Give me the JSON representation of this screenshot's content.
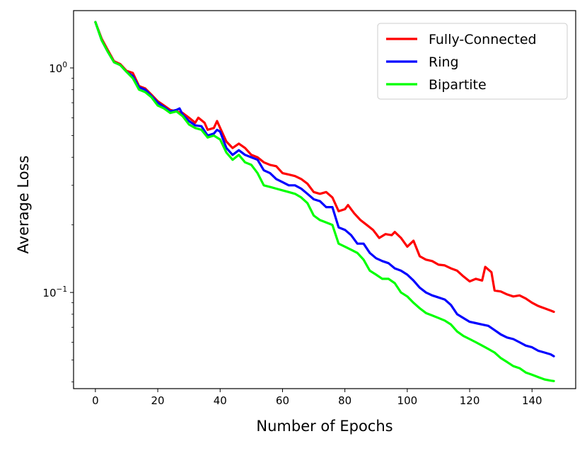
{
  "chart_data": {
    "type": "line",
    "title": "",
    "xlabel": "Number of Epochs",
    "ylabel": "Average Loss",
    "yscale": "log",
    "xlim": [
      -7,
      154
    ],
    "ylim": [
      0.0373,
      1.8
    ],
    "x_ticks": [
      0,
      20,
      40,
      60,
      80,
      100,
      120,
      140
    ],
    "y_ticks": [
      {
        "value": 1.0,
        "label_base": "10",
        "label_exp": "0"
      },
      {
        "value": 0.1,
        "label_base": "10",
        "label_exp": "−1"
      }
    ],
    "grid": false,
    "legend_placement": "top-right",
    "series": [
      {
        "name": "Fully-Connected",
        "color": "#ff0000",
        "points": [
          [
            0,
            1.6
          ],
          [
            2,
            1.35
          ],
          [
            4,
            1.2
          ],
          [
            6,
            1.07
          ],
          [
            8,
            1.04
          ],
          [
            10,
            0.97
          ],
          [
            12,
            0.95
          ],
          [
            14,
            0.83
          ],
          [
            16,
            0.81
          ],
          [
            18,
            0.76
          ],
          [
            20,
            0.71
          ],
          [
            22,
            0.68
          ],
          [
            24,
            0.65
          ],
          [
            26,
            0.64
          ],
          [
            28,
            0.63
          ],
          [
            30,
            0.6
          ],
          [
            32,
            0.57
          ],
          [
            33,
            0.6
          ],
          [
            35,
            0.57
          ],
          [
            36,
            0.53
          ],
          [
            38,
            0.54
          ],
          [
            39,
            0.58
          ],
          [
            40,
            0.54
          ],
          [
            42,
            0.47
          ],
          [
            44,
            0.44
          ],
          [
            46,
            0.46
          ],
          [
            48,
            0.44
          ],
          [
            50,
            0.41
          ],
          [
            52,
            0.4
          ],
          [
            54,
            0.38
          ],
          [
            56,
            0.37
          ],
          [
            58,
            0.365
          ],
          [
            60,
            0.34
          ],
          [
            62,
            0.335
          ],
          [
            64,
            0.33
          ],
          [
            66,
            0.32
          ],
          [
            68,
            0.305
          ],
          [
            70,
            0.28
          ],
          [
            72,
            0.275
          ],
          [
            74,
            0.28
          ],
          [
            76,
            0.265
          ],
          [
            78,
            0.23
          ],
          [
            80,
            0.235
          ],
          [
            81,
            0.245
          ],
          [
            83,
            0.225
          ],
          [
            85,
            0.21
          ],
          [
            87,
            0.2
          ],
          [
            89,
            0.19
          ],
          [
            91,
            0.175
          ],
          [
            93,
            0.182
          ],
          [
            95,
            0.18
          ],
          [
            96,
            0.186
          ],
          [
            98,
            0.175
          ],
          [
            100,
            0.16
          ],
          [
            102,
            0.17
          ],
          [
            104,
            0.145
          ],
          [
            106,
            0.14
          ],
          [
            108,
            0.138
          ],
          [
            110,
            0.133
          ],
          [
            112,
            0.132
          ],
          [
            114,
            0.128
          ],
          [
            116,
            0.125
          ],
          [
            118,
            0.118
          ],
          [
            120,
            0.112
          ],
          [
            122,
            0.115
          ],
          [
            124,
            0.113
          ],
          [
            125,
            0.13
          ],
          [
            127,
            0.123
          ],
          [
            128,
            0.102
          ],
          [
            130,
            0.101
          ],
          [
            132,
            0.098
          ],
          [
            134,
            0.096
          ],
          [
            136,
            0.097
          ],
          [
            138,
            0.094
          ],
          [
            140,
            0.09
          ],
          [
            142,
            0.087
          ],
          [
            144,
            0.085
          ],
          [
            146,
            0.083
          ],
          [
            147,
            0.082
          ]
        ]
      },
      {
        "name": "Ring",
        "color": "#0000ff",
        "points": [
          [
            0,
            1.6
          ],
          [
            2,
            1.33
          ],
          [
            4,
            1.18
          ],
          [
            6,
            1.06
          ],
          [
            8,
            1.03
          ],
          [
            10,
            0.96
          ],
          [
            12,
            0.92
          ],
          [
            14,
            0.82
          ],
          [
            16,
            0.8
          ],
          [
            18,
            0.75
          ],
          [
            20,
            0.7
          ],
          [
            22,
            0.67
          ],
          [
            24,
            0.64
          ],
          [
            26,
            0.65
          ],
          [
            27,
            0.66
          ],
          [
            28,
            0.62
          ],
          [
            30,
            0.58
          ],
          [
            32,
            0.555
          ],
          [
            34,
            0.55
          ],
          [
            36,
            0.5
          ],
          [
            38,
            0.51
          ],
          [
            39,
            0.53
          ],
          [
            40,
            0.52
          ],
          [
            42,
            0.44
          ],
          [
            44,
            0.41
          ],
          [
            46,
            0.43
          ],
          [
            48,
            0.41
          ],
          [
            50,
            0.4
          ],
          [
            52,
            0.39
          ],
          [
            54,
            0.35
          ],
          [
            56,
            0.34
          ],
          [
            58,
            0.32
          ],
          [
            60,
            0.31
          ],
          [
            62,
            0.3
          ],
          [
            64,
            0.3
          ],
          [
            66,
            0.29
          ],
          [
            68,
            0.275
          ],
          [
            70,
            0.26
          ],
          [
            72,
            0.255
          ],
          [
            74,
            0.24
          ],
          [
            76,
            0.24
          ],
          [
            78,
            0.195
          ],
          [
            80,
            0.19
          ],
          [
            82,
            0.18
          ],
          [
            84,
            0.165
          ],
          [
            86,
            0.165
          ],
          [
            88,
            0.15
          ],
          [
            90,
            0.142
          ],
          [
            92,
            0.138
          ],
          [
            94,
            0.135
          ],
          [
            96,
            0.128
          ],
          [
            98,
            0.125
          ],
          [
            100,
            0.12
          ],
          [
            102,
            0.113
          ],
          [
            104,
            0.105
          ],
          [
            106,
            0.1
          ],
          [
            108,
            0.097
          ],
          [
            110,
            0.095
          ],
          [
            112,
            0.093
          ],
          [
            114,
            0.088
          ],
          [
            116,
            0.08
          ],
          [
            118,
            0.077
          ],
          [
            120,
            0.074
          ],
          [
            122,
            0.073
          ],
          [
            124,
            0.072
          ],
          [
            126,
            0.071
          ],
          [
            128,
            0.068
          ],
          [
            130,
            0.065
          ],
          [
            132,
            0.063
          ],
          [
            134,
            0.062
          ],
          [
            136,
            0.06
          ],
          [
            138,
            0.058
          ],
          [
            140,
            0.057
          ],
          [
            142,
            0.055
          ],
          [
            144,
            0.054
          ],
          [
            146,
            0.053
          ],
          [
            147,
            0.052
          ]
        ]
      },
      {
        "name": "Bipartite",
        "color": "#00ff00",
        "points": [
          [
            0,
            1.6
          ],
          [
            2,
            1.33
          ],
          [
            4,
            1.18
          ],
          [
            6,
            1.06
          ],
          [
            8,
            1.03
          ],
          [
            10,
            0.96
          ],
          [
            12,
            0.9
          ],
          [
            14,
            0.8
          ],
          [
            16,
            0.78
          ],
          [
            18,
            0.74
          ],
          [
            20,
            0.68
          ],
          [
            22,
            0.66
          ],
          [
            24,
            0.63
          ],
          [
            26,
            0.64
          ],
          [
            28,
            0.61
          ],
          [
            30,
            0.56
          ],
          [
            32,
            0.54
          ],
          [
            34,
            0.53
          ],
          [
            36,
            0.49
          ],
          [
            38,
            0.5
          ],
          [
            40,
            0.48
          ],
          [
            42,
            0.42
          ],
          [
            44,
            0.39
          ],
          [
            46,
            0.41
          ],
          [
            48,
            0.38
          ],
          [
            50,
            0.37
          ],
          [
            52,
            0.34
          ],
          [
            54,
            0.3
          ],
          [
            56,
            0.295
          ],
          [
            58,
            0.29
          ],
          [
            60,
            0.285
          ],
          [
            62,
            0.28
          ],
          [
            64,
            0.275
          ],
          [
            66,
            0.265
          ],
          [
            68,
            0.25
          ],
          [
            70,
            0.22
          ],
          [
            72,
            0.21
          ],
          [
            74,
            0.205
          ],
          [
            76,
            0.2
          ],
          [
            78,
            0.165
          ],
          [
            80,
            0.16
          ],
          [
            82,
            0.155
          ],
          [
            84,
            0.15
          ],
          [
            86,
            0.14
          ],
          [
            88,
            0.125
          ],
          [
            90,
            0.12
          ],
          [
            92,
            0.115
          ],
          [
            94,
            0.115
          ],
          [
            96,
            0.11
          ],
          [
            98,
            0.1
          ],
          [
            100,
            0.096
          ],
          [
            102,
            0.09
          ],
          [
            104,
            0.085
          ],
          [
            106,
            0.081
          ],
          [
            108,
            0.079
          ],
          [
            110,
            0.077
          ],
          [
            112,
            0.075
          ],
          [
            114,
            0.072
          ],
          [
            116,
            0.067
          ],
          [
            118,
            0.064
          ],
          [
            120,
            0.062
          ],
          [
            122,
            0.06
          ],
          [
            124,
            0.058
          ],
          [
            126,
            0.056
          ],
          [
            128,
            0.054
          ],
          [
            130,
            0.051
          ],
          [
            132,
            0.049
          ],
          [
            134,
            0.047
          ],
          [
            136,
            0.046
          ],
          [
            138,
            0.044
          ],
          [
            140,
            0.043
          ],
          [
            142,
            0.042
          ],
          [
            144,
            0.041
          ],
          [
            146,
            0.0405
          ],
          [
            147,
            0.0403
          ]
        ]
      }
    ]
  }
}
